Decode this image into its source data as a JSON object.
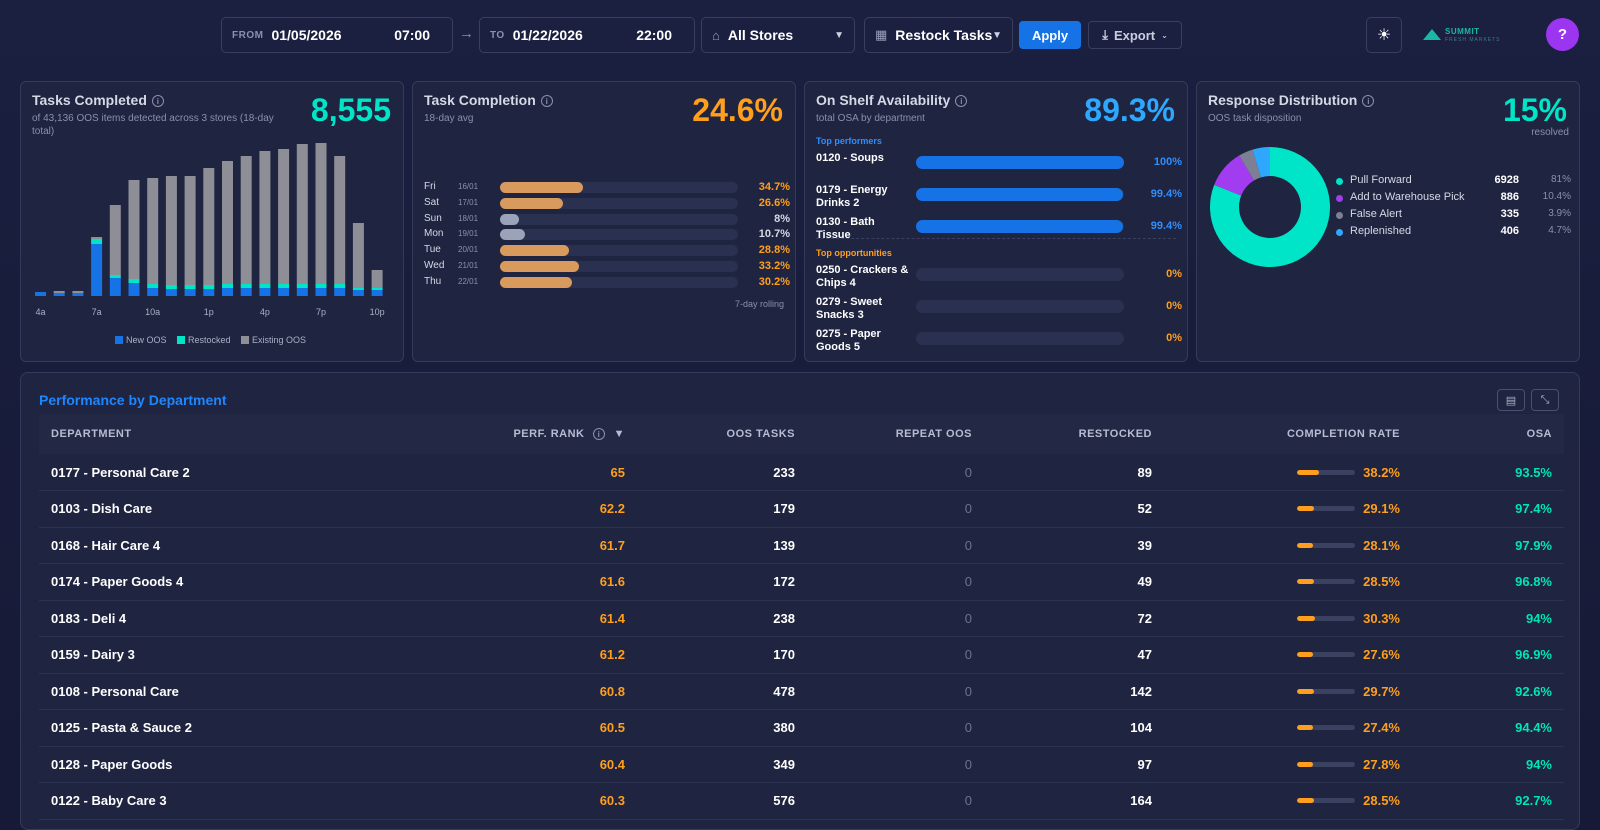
{
  "toolbar": {
    "from_label": "FROM",
    "from_date": "01/05/2026",
    "from_time": "07:00",
    "to_label": "TO",
    "to_date": "01/22/2026",
    "to_time": "22:00",
    "arrow": "→",
    "store_select": "All Stores",
    "task_select": "Restock Tasks",
    "apply_label": "Apply",
    "export_label": "Export",
    "help_label": "?",
    "logo_name": "SUMMIT",
    "logo_sub": "FRESH MARKETS"
  },
  "tasks_completed": {
    "title": "Tasks Completed",
    "subtitle": "of 43,136 OOS items detected across 3 stores (18-day total)",
    "value": "8,555",
    "legend": [
      "New OOS",
      "Restocked",
      "Existing OOS"
    ],
    "colors": {
      "new": "#1673e6",
      "restocked": "#00e5c8",
      "existing": "#8e8e96"
    }
  },
  "chart_data": {
    "type": "bar",
    "stacked": true,
    "categories": [
      "4a",
      "5a",
      "6a",
      "7a",
      "8a",
      "9a",
      "10a",
      "11a",
      "12p",
      "1p",
      "2p",
      "3p",
      "4p",
      "5p",
      "6p",
      "7p",
      "8p",
      "9p",
      "10p"
    ],
    "tick_labels": [
      "4a",
      "7a",
      "10a",
      "1p",
      "4p",
      "7p",
      "10p"
    ],
    "series": [
      {
        "name": "New OOS",
        "values": [
          4,
          3,
          3,
          52,
          18,
          13,
          8,
          7,
          7,
          7,
          8,
          8,
          8,
          8,
          8,
          8,
          8,
          6,
          6
        ]
      },
      {
        "name": "Restocked",
        "values": [
          0,
          0,
          0,
          5,
          3,
          4,
          4,
          4,
          4,
          4,
          4,
          4,
          4,
          4,
          4,
          4,
          4,
          2,
          2
        ]
      },
      {
        "name": "Existing OOS",
        "values": [
          0,
          2,
          2,
          2,
          70,
          99,
          106,
          109,
          109,
          117,
          123,
          128,
          133,
          135,
          140,
          141,
          128,
          65,
          18
        ]
      }
    ]
  },
  "task_completion": {
    "title": "Task Completion",
    "subtitle": "18-day avg",
    "value": "24.6%",
    "footer": "7-day rolling",
    "rows": [
      {
        "day": "Fri",
        "date": "16/01",
        "pct": 34.7,
        "label": "34.7%"
      },
      {
        "day": "Sat",
        "date": "17/01",
        "pct": 26.6,
        "label": "26.6%"
      },
      {
        "day": "Sun",
        "date": "18/01",
        "pct": 8,
        "label": "8%"
      },
      {
        "day": "Mon",
        "date": "19/01",
        "pct": 10.7,
        "label": "10.7%"
      },
      {
        "day": "Tue",
        "date": "20/01",
        "pct": 28.8,
        "label": "28.8%"
      },
      {
        "day": "Wed",
        "date": "21/01",
        "pct": 33.2,
        "label": "33.2%"
      },
      {
        "day": "Thu",
        "date": "22/01",
        "pct": 30.2,
        "label": "30.2%"
      }
    ]
  },
  "osa": {
    "title": "On Shelf Availability",
    "subtitle": "total OSA by department",
    "value": "89.3%",
    "top_label": "Top performers",
    "opp_label": "Top opportunities",
    "top": [
      {
        "name": "0120 - Soups",
        "pct": 100,
        "label": "100%"
      },
      {
        "name": "0179 - Energy Drinks 2",
        "pct": 99.4,
        "label": "99.4%"
      },
      {
        "name": "0130 - Bath Tissue",
        "pct": 99.4,
        "label": "99.4%"
      }
    ],
    "opp": [
      {
        "name": "0250 - Crackers & Chips 4",
        "pct": 0,
        "label": "0%"
      },
      {
        "name": "0279 - Sweet Snacks 3",
        "pct": 0,
        "label": "0%"
      },
      {
        "name": "0275 - Paper Goods 5",
        "pct": 0,
        "label": "0%"
      }
    ]
  },
  "response": {
    "title": "Response Distribution",
    "subtitle": "OOS task disposition",
    "value": "15%",
    "value_sub": "resolved",
    "items": [
      {
        "name": "Pull Forward",
        "count": "6928",
        "pct": "81%",
        "share": 81,
        "color": "#00e5c8"
      },
      {
        "name": "Add to Warehouse Pick",
        "count": "886",
        "pct": "10.4%",
        "share": 10.4,
        "color": "#a23cf0"
      },
      {
        "name": "False Alert",
        "count": "335",
        "pct": "3.9%",
        "share": 3.9,
        "color": "#7d8094"
      },
      {
        "name": "Replenished",
        "count": "406",
        "pct": "4.7%",
        "share": 4.7,
        "color": "#2ea8ff"
      }
    ]
  },
  "perf": {
    "title": "Performance by Department",
    "headers": [
      "DEPARTMENT",
      "PERF. RANK",
      "OOS TASKS",
      "REPEAT OOS",
      "RESTOCKED",
      "COMPLETION RATE",
      "OSA"
    ],
    "sort_arrow": "▼",
    "rows": [
      {
        "dept": "0177 - Personal Care 2",
        "rank": "65",
        "oos": "233",
        "repeat": "0",
        "restocked": "89",
        "rate": 38.2,
        "rate_label": "38.2%",
        "osa": "93.5%"
      },
      {
        "dept": "0103 - Dish Care",
        "rank": "62.2",
        "oos": "179",
        "repeat": "0",
        "restocked": "52",
        "rate": 29.1,
        "rate_label": "29.1%",
        "osa": "97.4%"
      },
      {
        "dept": "0168 - Hair Care 4",
        "rank": "61.7",
        "oos": "139",
        "repeat": "0",
        "restocked": "39",
        "rate": 28.1,
        "rate_label": "28.1%",
        "osa": "97.9%"
      },
      {
        "dept": "0174 - Paper Goods 4",
        "rank": "61.6",
        "oos": "172",
        "repeat": "0",
        "restocked": "49",
        "rate": 28.5,
        "rate_label": "28.5%",
        "osa": "96.8%"
      },
      {
        "dept": "0183 - Deli 4",
        "rank": "61.4",
        "oos": "238",
        "repeat": "0",
        "restocked": "72",
        "rate": 30.3,
        "rate_label": "30.3%",
        "osa": "94%"
      },
      {
        "dept": "0159 - Dairy 3",
        "rank": "61.2",
        "oos": "170",
        "repeat": "0",
        "restocked": "47",
        "rate": 27.6,
        "rate_label": "27.6%",
        "osa": "96.9%"
      },
      {
        "dept": "0108 - Personal Care",
        "rank": "60.8",
        "oos": "478",
        "repeat": "0",
        "restocked": "142",
        "rate": 29.7,
        "rate_label": "29.7%",
        "osa": "92.6%"
      },
      {
        "dept": "0125 - Pasta & Sauce 2",
        "rank": "60.5",
        "oos": "380",
        "repeat": "0",
        "restocked": "104",
        "rate": 27.4,
        "rate_label": "27.4%",
        "osa": "94.4%"
      },
      {
        "dept": "0128 - Paper Goods",
        "rank": "60.4",
        "oos": "349",
        "repeat": "0",
        "restocked": "97",
        "rate": 27.8,
        "rate_label": "27.8%",
        "osa": "94%"
      },
      {
        "dept": "0122 - Baby Care 3",
        "rank": "60.3",
        "oos": "576",
        "repeat": "0",
        "restocked": "164",
        "rate": 28.5,
        "rate_label": "28.5%",
        "osa": "92.7%"
      }
    ]
  }
}
